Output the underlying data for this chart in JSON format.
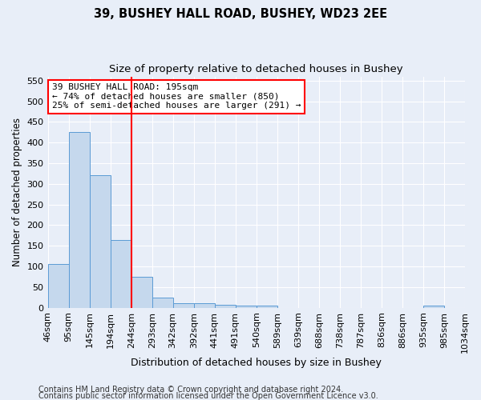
{
  "title1": "39, BUSHEY HALL ROAD, BUSHEY, WD23 2EE",
  "title2": "Size of property relative to detached houses in Bushey",
  "xlabel": "Distribution of detached houses by size in Bushey",
  "ylabel": "Number of detached properties",
  "bar_values": [
    105,
    425,
    320,
    165,
    75,
    25,
    12,
    12,
    8,
    5,
    5,
    0,
    0,
    0,
    0,
    0,
    0,
    0,
    5,
    0
  ],
  "bin_labels": [
    "46sqm",
    "95sqm",
    "145sqm",
    "194sqm",
    "244sqm",
    "293sqm",
    "342sqm",
    "392sqm",
    "441sqm",
    "491sqm",
    "540sqm",
    "589sqm",
    "639sqm",
    "688sqm",
    "738sqm",
    "787sqm",
    "836sqm",
    "886sqm",
    "935sqm",
    "985sqm",
    "1034sqm"
  ],
  "bar_color": "#c5d8ed",
  "bar_edge_color": "#5b9bd5",
  "vline_color": "red",
  "vline_pos": 3.5,
  "annotation_text": "39 BUSHEY HALL ROAD: 195sqm\n← 74% of detached houses are smaller (850)\n25% of semi-detached houses are larger (291) →",
  "annotation_box_color": "white",
  "annotation_box_edge": "red",
  "ylim": [
    0,
    560
  ],
  "yticks": [
    0,
    50,
    100,
    150,
    200,
    250,
    300,
    350,
    400,
    450,
    500,
    550
  ],
  "footer1": "Contains HM Land Registry data © Crown copyright and database right 2024.",
  "footer2": "Contains public sector information licensed under the Open Government Licence v3.0.",
  "bg_color": "#e8eef8",
  "grid_color": "#ffffff",
  "title1_fontsize": 10.5,
  "title2_fontsize": 9.5,
  "xlabel_fontsize": 9,
  "ylabel_fontsize": 8.5,
  "tick_fontsize": 8,
  "footer_fontsize": 7,
  "annotation_fontsize": 8
}
